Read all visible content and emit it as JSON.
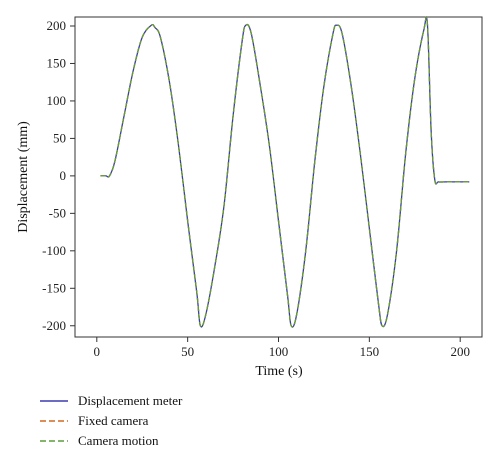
{
  "chart_data": {
    "type": "line",
    "xlabel": "Time (s)",
    "ylabel": "Displacement (mm)",
    "xlim": [
      -12,
      212
    ],
    "ylim": [
      -215,
      212
    ],
    "x_ticks": [
      0,
      50,
      100,
      150,
      200
    ],
    "y_ticks": [
      200,
      150,
      100,
      50,
      0,
      -50,
      -100,
      -150,
      -200
    ],
    "grid": false,
    "legend_position": "bottom-left",
    "series": [
      {
        "name": "Displacement meter",
        "color": "#3b3bb0",
        "dash": "solid",
        "x": [
          2,
          5,
          7,
          10,
          15,
          20,
          25,
          30,
          32,
          35,
          40,
          45,
          50,
          55,
          57,
          60,
          65,
          70,
          75,
          80,
          82,
          85,
          90,
          95,
          100,
          105,
          107,
          110,
          115,
          120,
          125,
          130,
          132,
          135,
          140,
          145,
          150,
          155,
          157,
          160,
          165,
          170,
          175,
          180,
          182,
          184,
          186,
          188,
          192,
          200,
          205
        ],
        "y": [
          0,
          0,
          0,
          20,
          80,
          140,
          185,
          201,
          198,
          185,
          125,
          40,
          -60,
          -155,
          -200,
          -185,
          -120,
          -40,
          80,
          180,
          201,
          190,
          120,
          40,
          -60,
          -160,
          -200,
          -185,
          -100,
          20,
          120,
          190,
          201,
          190,
          120,
          30,
          -70,
          -170,
          -200,
          -185,
          -100,
          30,
          130,
          195,
          201,
          60,
          -5,
          -8,
          -8,
          -8,
          -8
        ]
      },
      {
        "name": "Fixed camera",
        "color": "#d2691e",
        "dash": "dashed",
        "x": [
          2,
          5,
          7,
          10,
          15,
          20,
          25,
          30,
          32,
          35,
          40,
          45,
          50,
          55,
          57,
          60,
          65,
          70,
          75,
          80,
          82,
          85,
          90,
          95,
          100,
          105,
          107,
          110,
          115,
          120,
          125,
          130,
          132,
          135,
          140,
          145,
          150,
          155,
          157,
          160,
          165,
          170,
          175,
          180,
          182,
          184,
          186,
          188,
          192,
          200,
          205
        ],
        "y": [
          0,
          0,
          0,
          20,
          80,
          140,
          185,
          201,
          198,
          185,
          125,
          40,
          -60,
          -155,
          -200,
          -185,
          -120,
          -40,
          80,
          180,
          201,
          190,
          120,
          40,
          -60,
          -160,
          -200,
          -185,
          -100,
          20,
          120,
          190,
          201,
          190,
          120,
          30,
          -70,
          -170,
          -200,
          -185,
          -100,
          30,
          130,
          195,
          201,
          60,
          -5,
          -8,
          -8,
          -8,
          -8
        ]
      },
      {
        "name": "Camera motion",
        "color": "#5a9e3a",
        "dash": "dashed",
        "x": [
          2,
          5,
          7,
          10,
          15,
          20,
          25,
          30,
          32,
          35,
          40,
          45,
          50,
          55,
          57,
          60,
          65,
          70,
          75,
          80,
          82,
          85,
          90,
          95,
          100,
          105,
          107,
          110,
          115,
          120,
          125,
          130,
          132,
          135,
          140,
          145,
          150,
          155,
          157,
          160,
          165,
          170,
          175,
          180,
          182,
          184,
          186,
          188,
          192,
          200,
          205
        ],
        "y": [
          0,
          0,
          0,
          20,
          80,
          140,
          185,
          201,
          198,
          185,
          125,
          40,
          -60,
          -155,
          -200,
          -185,
          -120,
          -40,
          80,
          180,
          201,
          190,
          120,
          40,
          -60,
          -160,
          -200,
          -185,
          -100,
          20,
          120,
          190,
          201,
          190,
          120,
          30,
          -70,
          -170,
          -200,
          -185,
          -100,
          30,
          130,
          195,
          201,
          60,
          -5,
          -8,
          -8,
          -8,
          -8
        ]
      }
    ]
  }
}
